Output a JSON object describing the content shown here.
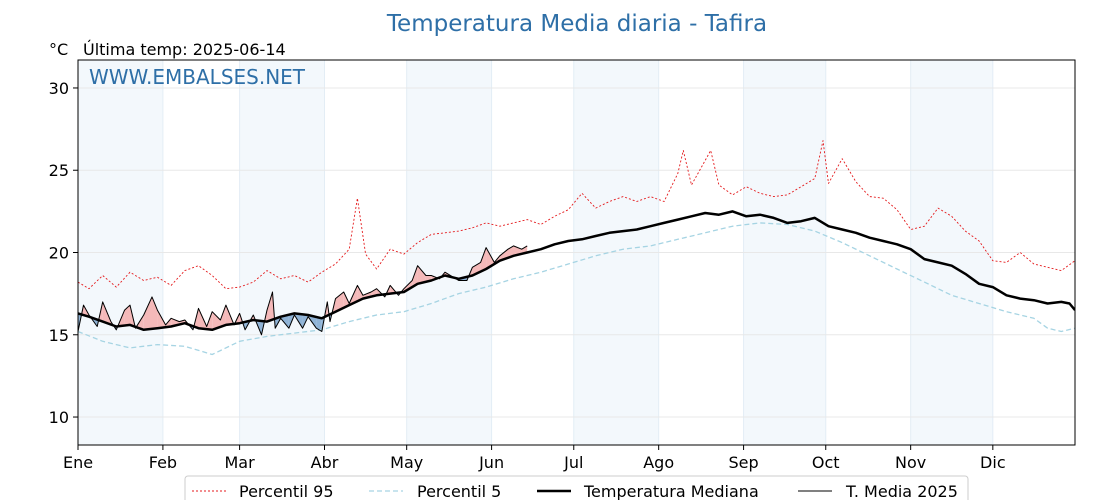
{
  "chart_data": {
    "type": "line",
    "title": "Temperatura Media diaria - Tafira",
    "unit": "°C",
    "last_temp": "Última temp: 2025-06-14",
    "watermark": "WWW.EMBALSES.NET",
    "ylim": [
      8.3,
      31.7
    ],
    "yticks": [
      10,
      15,
      20,
      25,
      30
    ],
    "xlim": [
      1,
      365
    ],
    "months": [
      {
        "label": "Ene",
        "day": 1
      },
      {
        "label": "Feb",
        "day": 32
      },
      {
        "label": "Mar",
        "day": 60
      },
      {
        "label": "Abr",
        "day": 91
      },
      {
        "label": "May",
        "day": 121
      },
      {
        "label": "Jun",
        "day": 152
      },
      {
        "label": "Jul",
        "day": 182
      },
      {
        "label": "Ago",
        "day": 213
      },
      {
        "label": "Sep",
        "day": 244
      },
      {
        "label": "Oct",
        "day": 274
      },
      {
        "label": "Nov",
        "day": 305
      },
      {
        "label": "Dic",
        "day": 335
      }
    ],
    "shaded_months": [
      [
        1,
        32
      ],
      [
        60,
        91
      ],
      [
        121,
        152
      ],
      [
        182,
        213
      ],
      [
        244,
        274
      ],
      [
        305,
        335
      ]
    ],
    "grid": true,
    "legend_position": "bottom",
    "series": [
      {
        "name": "Percentil 95",
        "color": "#e41a1c",
        "style": "dotted",
        "x": [
          1,
          5,
          10,
          15,
          20,
          25,
          30,
          35,
          40,
          45,
          50,
          55,
          60,
          65,
          70,
          75,
          80,
          85,
          90,
          95,
          100,
          103,
          106,
          110,
          115,
          120,
          125,
          130,
          135,
          140,
          145,
          150,
          155,
          160,
          165,
          170,
          175,
          180,
          185,
          190,
          195,
          200,
          205,
          210,
          215,
          220,
          222,
          225,
          230,
          232,
          235,
          240,
          245,
          250,
          255,
          260,
          265,
          270,
          273,
          275,
          280,
          285,
          290,
          295,
          300,
          305,
          310,
          315,
          320,
          325,
          330,
          335,
          340,
          345,
          350,
          355,
          360,
          365
        ],
        "y": [
          18.2,
          17.8,
          18.6,
          17.9,
          18.8,
          18.3,
          18.5,
          18.0,
          18.9,
          19.2,
          18.6,
          17.8,
          17.9,
          18.2,
          18.9,
          18.4,
          18.6,
          18.2,
          18.8,
          19.3,
          20.2,
          23.3,
          19.9,
          19.0,
          20.2,
          19.9,
          20.6,
          21.1,
          21.2,
          21.3,
          21.5,
          21.8,
          21.6,
          21.8,
          22.0,
          21.7,
          22.2,
          22.6,
          23.6,
          22.7,
          23.1,
          23.4,
          23.1,
          23.4,
          23.1,
          24.8,
          26.2,
          24.1,
          25.6,
          26.2,
          24.1,
          23.5,
          24.0,
          23.6,
          23.4,
          23.5,
          24.0,
          24.5,
          26.8,
          24.2,
          25.7,
          24.3,
          23.4,
          23.3,
          22.6,
          21.4,
          21.6,
          22.7,
          22.2,
          21.3,
          20.7,
          19.5,
          19.4,
          20.0,
          19.3,
          19.1,
          18.9,
          19.5
        ]
      },
      {
        "name": "Percentil 5",
        "color": "#a6d4e3",
        "style": "dashed",
        "x": [
          1,
          10,
          20,
          30,
          40,
          50,
          60,
          70,
          80,
          90,
          100,
          110,
          120,
          130,
          140,
          150,
          160,
          170,
          180,
          190,
          200,
          210,
          220,
          230,
          240,
          250,
          260,
          270,
          280,
          290,
          300,
          310,
          320,
          330,
          340,
          350,
          355,
          360,
          365
        ],
        "y": [
          15.2,
          14.6,
          14.2,
          14.4,
          14.3,
          13.8,
          14.6,
          14.9,
          15.1,
          15.3,
          15.8,
          16.2,
          16.4,
          16.9,
          17.5,
          17.9,
          18.4,
          18.8,
          19.3,
          19.8,
          20.2,
          20.4,
          20.8,
          21.2,
          21.6,
          21.8,
          21.7,
          21.3,
          20.6,
          19.8,
          19.0,
          18.2,
          17.4,
          16.9,
          16.4,
          16.0,
          15.4,
          15.2,
          15.4
        ]
      },
      {
        "name": "Temperatura Mediana",
        "color": "#000000",
        "style": "solid-thick",
        "x": [
          1,
          5,
          10,
          15,
          20,
          25,
          30,
          35,
          40,
          45,
          50,
          55,
          60,
          65,
          70,
          75,
          80,
          85,
          90,
          95,
          100,
          105,
          110,
          115,
          120,
          125,
          130,
          135,
          140,
          145,
          150,
          155,
          160,
          165,
          170,
          175,
          180,
          185,
          190,
          195,
          200,
          205,
          210,
          215,
          220,
          225,
          230,
          235,
          240,
          245,
          250,
          255,
          260,
          265,
          270,
          275,
          280,
          285,
          290,
          295,
          300,
          305,
          310,
          315,
          320,
          325,
          330,
          335,
          340,
          345,
          350,
          355,
          360,
          363,
          365
        ],
        "y": [
          16.3,
          16.1,
          15.8,
          15.5,
          15.6,
          15.3,
          15.4,
          15.5,
          15.7,
          15.4,
          15.3,
          15.6,
          15.7,
          15.9,
          15.8,
          16.1,
          16.3,
          16.2,
          16.0,
          16.4,
          16.8,
          17.2,
          17.4,
          17.5,
          17.6,
          18.1,
          18.3,
          18.6,
          18.4,
          18.6,
          19.0,
          19.5,
          19.8,
          20.0,
          20.2,
          20.5,
          20.7,
          20.8,
          21.0,
          21.2,
          21.3,
          21.4,
          21.6,
          21.8,
          22.0,
          22.2,
          22.4,
          22.3,
          22.5,
          22.2,
          22.3,
          22.1,
          21.8,
          21.9,
          22.1,
          21.6,
          21.4,
          21.2,
          20.9,
          20.7,
          20.5,
          20.2,
          19.6,
          19.4,
          19.2,
          18.7,
          18.1,
          17.9,
          17.4,
          17.2,
          17.1,
          16.9,
          17.0,
          16.9,
          16.5
        ]
      },
      {
        "name": "T. Media 2025",
        "color": "#000000",
        "style": "solid-thin",
        "x": [
          1,
          3,
          5,
          8,
          10,
          13,
          15,
          18,
          20,
          22,
          25,
          28,
          30,
          33,
          35,
          38,
          40,
          43,
          45,
          48,
          50,
          53,
          55,
          58,
          60,
          62,
          65,
          68,
          70,
          72,
          73,
          75,
          78,
          80,
          83,
          85,
          88,
          90,
          92,
          93,
          95,
          98,
          100,
          103,
          105,
          108,
          110,
          113,
          115,
          118,
          120,
          123,
          125,
          128,
          130,
          133,
          135,
          138,
          140,
          143,
          145,
          148,
          150,
          153,
          155,
          158,
          160,
          163,
          165
        ],
        "y": [
          15.2,
          16.8,
          16.2,
          15.5,
          17.0,
          15.8,
          15.3,
          16.5,
          16.8,
          15.4,
          16.2,
          17.3,
          16.5,
          15.6,
          16.0,
          15.8,
          15.9,
          15.3,
          16.6,
          15.5,
          16.4,
          15.9,
          16.8,
          15.6,
          16.3,
          15.3,
          16.2,
          15.0,
          16.5,
          17.6,
          15.4,
          16.0,
          15.4,
          16.2,
          15.4,
          16.1,
          15.4,
          15.2,
          17.0,
          15.8,
          17.2,
          17.6,
          16.9,
          18.0,
          17.4,
          17.6,
          17.8,
          17.3,
          18.0,
          17.4,
          17.8,
          18.3,
          19.2,
          18.6,
          18.6,
          18.4,
          18.8,
          18.5,
          18.3,
          18.3,
          19.1,
          19.4,
          20.3,
          19.4,
          19.8,
          20.2,
          20.4,
          20.2,
          20.4
        ]
      }
    ],
    "legend": [
      "Percentil 95",
      "Percentil 5",
      "Temperatura Mediana",
      "T. Media 2025"
    ]
  }
}
